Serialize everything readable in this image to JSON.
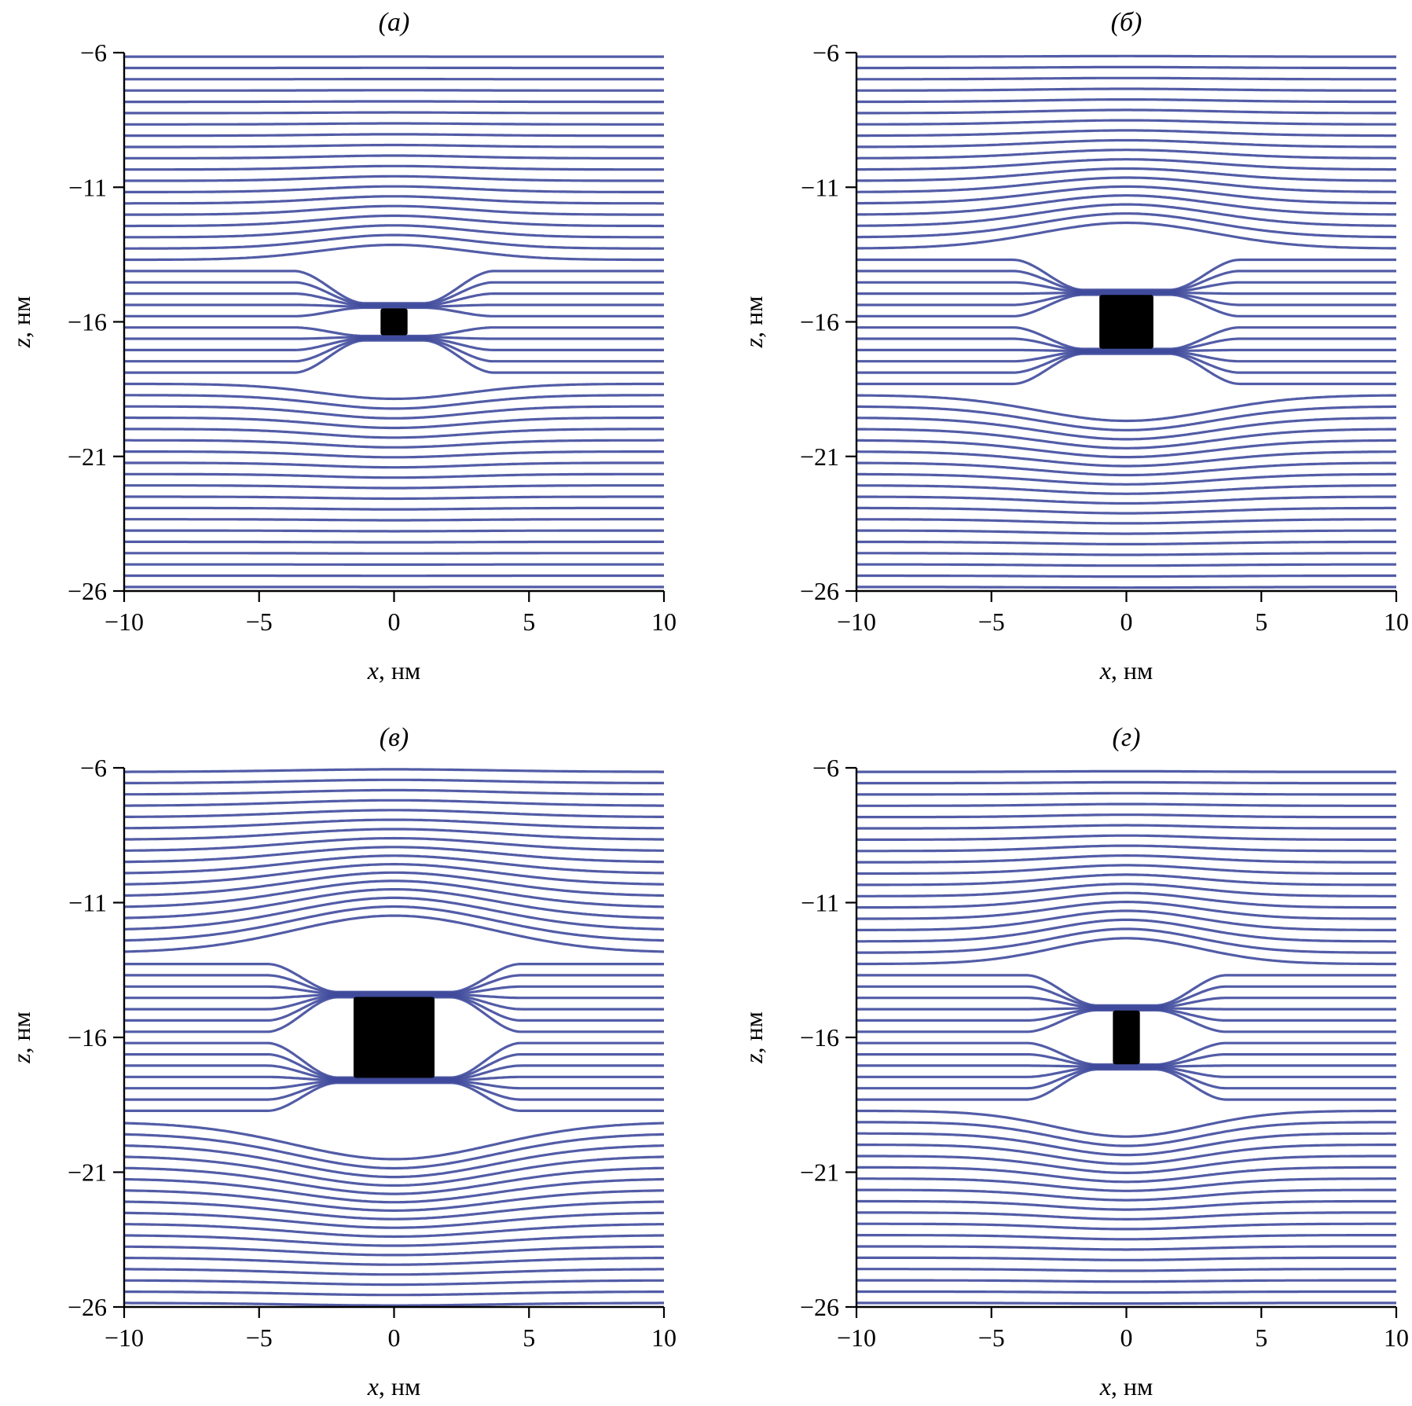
{
  "chart_data": [
    {
      "type": "line",
      "panel_label": "(а)",
      "xlabel_var": "x",
      "xlabel_unit": ", нм",
      "ylabel_var": "z",
      "ylabel_unit": ", нм",
      "xlim": [
        -10,
        10
      ],
      "ylim": [
        -26,
        -6
      ],
      "xticks": [
        -10,
        -5,
        0,
        5,
        10
      ],
      "yticks": [
        -6,
        -11,
        -16,
        -21,
        -26
      ],
      "xtick_labels": [
        "−10",
        "−5",
        "0",
        "5",
        "10"
      ],
      "ytick_labels": [
        "−6",
        "−11",
        "−16",
        "−21",
        "−26"
      ],
      "series_description": "field lines",
      "line_color": "#3f4a9c",
      "line_count": 48,
      "inclusion": {
        "x": [
          -0.5,
          0.5
        ],
        "z": [
          -16.5,
          -15.5
        ]
      }
    },
    {
      "type": "line",
      "panel_label": "(б)",
      "xlabel_var": "x",
      "xlabel_unit": ", нм",
      "ylabel_var": "z",
      "ylabel_unit": ", нм",
      "xlim": [
        -10,
        10
      ],
      "ylim": [
        -26,
        -6
      ],
      "xticks": [
        -10,
        -5,
        0,
        5,
        10
      ],
      "yticks": [
        -6,
        -11,
        -16,
        -21,
        -26
      ],
      "xtick_labels": [
        "−10",
        "−5",
        "0",
        "5",
        "10"
      ],
      "ytick_labels": [
        "−6",
        "−11",
        "−16",
        "−21",
        "−26"
      ],
      "line_color": "#3f4a9c",
      "line_count": 48,
      "inclusion": {
        "x": [
          -1.0,
          1.0
        ],
        "z": [
          -17.0,
          -15.0
        ]
      }
    },
    {
      "type": "line",
      "panel_label": "(в)",
      "xlabel_var": "x",
      "xlabel_unit": ", нм",
      "ylabel_var": "z",
      "ylabel_unit": ", нм",
      "xlim": [
        -10,
        10
      ],
      "ylim": [
        -26,
        -6
      ],
      "xticks": [
        -10,
        -5,
        0,
        5,
        10
      ],
      "yticks": [
        -6,
        -11,
        -16,
        -21,
        -26
      ],
      "xtick_labels": [
        "−10",
        "−5",
        "0",
        "5",
        "10"
      ],
      "ytick_labels": [
        "−6",
        "−11",
        "−16",
        "−21",
        "−26"
      ],
      "line_color": "#3f4a9c",
      "line_count": 48,
      "inclusion": {
        "x": [
          -1.5,
          1.5
        ],
        "z": [
          -17.5,
          -14.5
        ]
      }
    },
    {
      "type": "line",
      "panel_label": "(г)",
      "xlabel_var": "x",
      "xlabel_unit": ", нм",
      "ylabel_var": "z",
      "ylabel_unit": ", нм",
      "xlim": [
        -10,
        10
      ],
      "ylim": [
        -26,
        -6
      ],
      "xticks": [
        -10,
        -5,
        0,
        5,
        10
      ],
      "yticks": [
        -6,
        -11,
        -16,
        -21,
        -26
      ],
      "xtick_labels": [
        "−10",
        "−5",
        "0",
        "5",
        "10"
      ],
      "ytick_labels": [
        "−6",
        "−11",
        "−16",
        "−21",
        "−26"
      ],
      "line_color": "#3f4a9c",
      "line_count": 48,
      "inclusion": {
        "x": [
          -0.5,
          0.5
        ],
        "z": [
          -17.0,
          -15.0
        ]
      }
    }
  ]
}
